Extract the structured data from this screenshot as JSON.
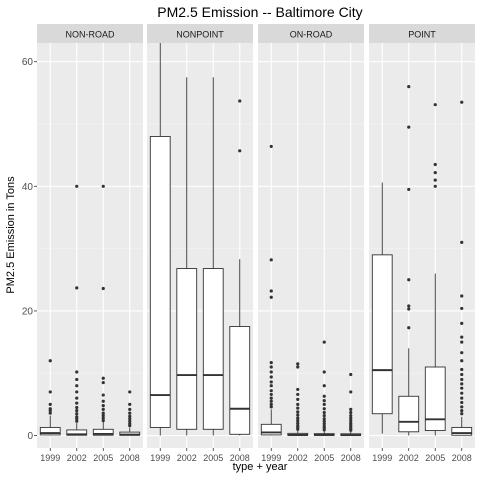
{
  "chart_data": {
    "type": "boxplot",
    "title": "PM2.5 Emission -- Baltimore City",
    "xlabel": "type + year",
    "ylabel": "PM2.5 Emission in Tons",
    "ylim": [
      -2,
      63
    ],
    "y_ticks": [
      0,
      20,
      40,
      60
    ],
    "grid": true,
    "categories": [
      "1999",
      "2002",
      "2005",
      "2008"
    ],
    "facets": [
      {
        "name": "NON-ROAD",
        "boxes": [
          {
            "year": "1999",
            "q1": 0.1,
            "median": 0.4,
            "q3": 1.3,
            "whisker_low": 0.0,
            "whisker_high": 3.2,
            "outliers": [
              3.6,
              4.0,
              4.3,
              5.0,
              7.0,
              12.0
            ]
          },
          {
            "year": "2002",
            "q1": 0.05,
            "median": 0.2,
            "q3": 0.9,
            "whisker_low": 0.0,
            "whisker_high": 2.0,
            "outliers": [
              2.3,
              2.7,
              3.0,
              3.5,
              4.0,
              4.5,
              5.2,
              6.0,
              7.0,
              8.0,
              9.0,
              10.2,
              23.7,
              40.0
            ]
          },
          {
            "year": "2005",
            "q1": 0.05,
            "median": 0.25,
            "q3": 1.0,
            "whisker_low": 0.0,
            "whisker_high": 2.2,
            "outliers": [
              2.4,
              2.8,
              3.2,
              3.6,
              4.2,
              4.8,
              5.5,
              6.5,
              8.5,
              9.2,
              23.6,
              40.0
            ]
          },
          {
            "year": "2008",
            "q1": 0.03,
            "median": 0.15,
            "q3": 0.55,
            "whisker_low": 0.0,
            "whisker_high": 1.3,
            "outliers": [
              1.6,
              1.9,
              2.3,
              2.7,
              3.1,
              3.6,
              4.2,
              5.0,
              7.0
            ]
          }
        ]
      },
      {
        "name": "NONPOINT",
        "boxes": [
          {
            "year": "1999",
            "q1": 1.3,
            "median": 6.5,
            "q3": 48.0,
            "whisker_low": 0.0,
            "whisker_high": 63.0,
            "outliers": []
          },
          {
            "year": "2002",
            "q1": 1.0,
            "median": 9.7,
            "q3": 26.8,
            "whisker_low": 0.0,
            "whisker_high": 57.5,
            "outliers": []
          },
          {
            "year": "2005",
            "q1": 1.0,
            "median": 9.7,
            "q3": 26.8,
            "whisker_low": 0.0,
            "whisker_high": 57.5,
            "outliers": []
          },
          {
            "year": "2008",
            "q1": 0.2,
            "median": 4.3,
            "q3": 17.5,
            "whisker_low": 0.0,
            "whisker_high": 28.3,
            "outliers": [
              45.7,
              53.7
            ]
          }
        ]
      },
      {
        "name": "ON-ROAD",
        "boxes": [
          {
            "year": "1999",
            "q1": 0.1,
            "median": 0.5,
            "q3": 1.8,
            "whisker_low": 0.0,
            "whisker_high": 4.2,
            "outliers": [
              4.6,
              5.0,
              5.5,
              6.0,
              6.6,
              7.2,
              8.0,
              8.6,
              9.4,
              10.2,
              11.0,
              11.7,
              22.2,
              23.2,
              28.2,
              46.4
            ]
          },
          {
            "year": "2002",
            "q1": 0.02,
            "median": 0.1,
            "q3": 0.35,
            "whisker_low": 0.0,
            "whisker_high": 0.8,
            "outliers": [
              1.0,
              1.3,
              1.6,
              2.0,
              2.4,
              2.8,
              3.3,
              3.8,
              4.4,
              5.0,
              5.8,
              6.6,
              7.4,
              11.0,
              11.5
            ]
          },
          {
            "year": "2005",
            "q1": 0.02,
            "median": 0.1,
            "q3": 0.3,
            "whisker_low": 0.0,
            "whisker_high": 0.7,
            "outliers": [
              0.9,
              1.2,
              1.5,
              1.9,
              2.3,
              2.7,
              3.2,
              3.7,
              4.3,
              5.0,
              5.6,
              6.3,
              8.0,
              10.2,
              15.0
            ]
          },
          {
            "year": "2008",
            "q1": 0.02,
            "median": 0.08,
            "q3": 0.28,
            "whisker_low": 0.0,
            "whisker_high": 0.65,
            "outliers": [
              0.85,
              1.1,
              1.4,
              1.7,
              2.0,
              2.4,
              2.8,
              3.2,
              3.7,
              4.2,
              7.0,
              9.8
            ]
          }
        ]
      },
      {
        "name": "POINT",
        "boxes": [
          {
            "year": "1999",
            "q1": 3.5,
            "median": 10.5,
            "q3": 29.0,
            "whisker_low": 0.3,
            "whisker_high": 40.6,
            "outliers": []
          },
          {
            "year": "2002",
            "q1": 0.6,
            "median": 2.2,
            "q3": 6.3,
            "whisker_low": 0.0,
            "whisker_high": 14.0,
            "outliers": [
              17.3,
              20.3,
              20.8,
              25.0,
              39.5,
              49.5,
              56.0
            ]
          },
          {
            "year": "2005",
            "q1": 0.8,
            "median": 2.6,
            "q3": 11.0,
            "whisker_low": 0.0,
            "whisker_high": 26.0,
            "outliers": [
              40.0,
              41.0,
              42.2,
              43.5,
              53.1
            ]
          },
          {
            "year": "2008",
            "q1": 0.05,
            "median": 0.4,
            "q3": 1.3,
            "whisker_low": 0.0,
            "whisker_high": 3.0,
            "outliers": [
              3.5,
              4.0,
              4.6,
              5.3,
              6.0,
              6.8,
              7.6,
              8.3,
              9.0,
              9.8,
              10.6,
              12.0,
              13.3,
              15.0,
              15.8,
              18.0,
              20.4,
              22.4,
              31.0,
              53.5
            ]
          }
        ]
      }
    ]
  }
}
